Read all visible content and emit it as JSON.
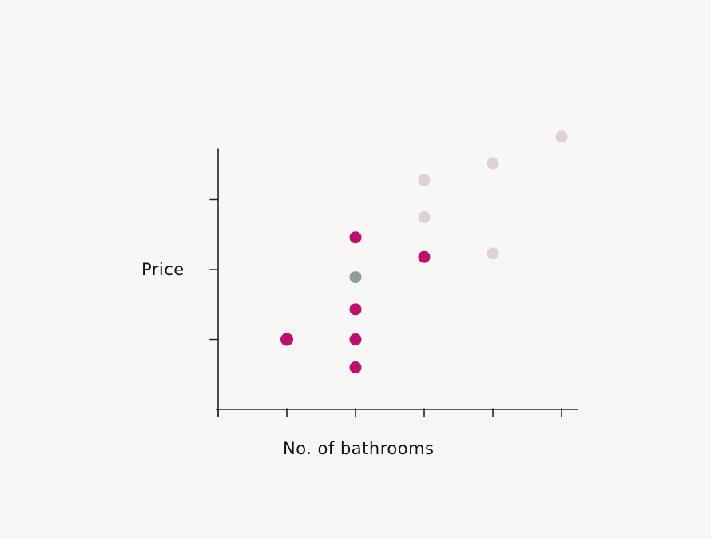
{
  "chart_data": {
    "type": "scatter",
    "title": "",
    "xlabel": "No. of bathrooms",
    "ylabel": "Price",
    "x_tick_count": 6,
    "y_tick_count": 3,
    "xlim": [
      0,
      5
    ],
    "ylim": [
      0,
      5.5
    ],
    "grid": false,
    "colors": {
      "magenta": "#c10d6b",
      "gray": "#8e9c9e",
      "light": "#dfd0d5",
      "axis": "#222222"
    },
    "points": [
      {
        "x": 1,
        "y": 1.0,
        "color": "magenta"
      },
      {
        "x": 2,
        "y": 0.6,
        "color": "magenta"
      },
      {
        "x": 2,
        "y": 1.0,
        "color": "magenta"
      },
      {
        "x": 2,
        "y": 1.43,
        "color": "magenta"
      },
      {
        "x": 2,
        "y": 1.89,
        "color": "gray"
      },
      {
        "x": 2,
        "y": 2.46,
        "color": "magenta"
      },
      {
        "x": 3,
        "y": 2.18,
        "color": "magenta"
      },
      {
        "x": 3,
        "y": 2.75,
        "color": "light"
      },
      {
        "x": 3,
        "y": 3.28,
        "color": "light"
      },
      {
        "x": 4,
        "y": 2.23,
        "color": "light"
      },
      {
        "x": 4,
        "y": 3.52,
        "color": "light"
      },
      {
        "x": 5,
        "y": 3.9,
        "color": "light"
      }
    ]
  }
}
